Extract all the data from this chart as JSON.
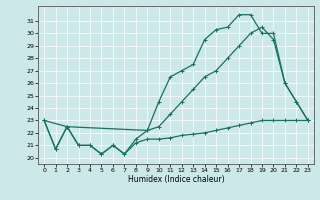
{
  "xlabel": "Humidex (Indice chaleur)",
  "bg_color": "#cce8e8",
  "line_color": "#1a7060",
  "grid_color": "#ffffff",
  "xlim": [
    -0.5,
    23.5
  ],
  "ylim": [
    19.5,
    32.2
  ],
  "xticks": [
    0,
    1,
    2,
    3,
    4,
    5,
    6,
    7,
    8,
    9,
    10,
    11,
    12,
    13,
    14,
    15,
    16,
    17,
    18,
    19,
    20,
    21,
    22,
    23
  ],
  "yticks": [
    20,
    21,
    22,
    23,
    24,
    25,
    26,
    27,
    28,
    29,
    30,
    31
  ],
  "series_top": {
    "x": [
      0,
      1,
      2,
      3,
      4,
      5,
      6,
      7,
      8,
      9,
      10,
      11,
      12,
      13,
      14,
      15,
      16,
      17,
      18,
      19,
      20,
      21,
      22,
      23
    ],
    "y": [
      23,
      20.7,
      22.5,
      21.0,
      21.0,
      20.3,
      21.0,
      20.3,
      21.5,
      22.2,
      24.5,
      26.5,
      27.0,
      27.5,
      29.5,
      30.3,
      30.5,
      31.5,
      31.5,
      30.0,
      30.0,
      26.0,
      24.5,
      23.0
    ]
  },
  "series_mid": {
    "x": [
      0,
      2,
      9,
      10,
      11,
      12,
      13,
      14,
      15,
      16,
      17,
      18,
      19,
      20,
      21,
      22,
      23
    ],
    "y": [
      23,
      22.5,
      22.2,
      22.5,
      23.5,
      24.5,
      25.5,
      26.5,
      27.0,
      28.0,
      29.0,
      30.0,
      30.5,
      29.5,
      26.0,
      24.5,
      23.0
    ]
  },
  "series_bottom": {
    "x": [
      0,
      1,
      2,
      3,
      4,
      5,
      6,
      7,
      8,
      9,
      10,
      11,
      12,
      13,
      14,
      15,
      16,
      17,
      18,
      19,
      20,
      21,
      22,
      23
    ],
    "y": [
      23,
      20.7,
      22.5,
      21.0,
      21.0,
      20.3,
      21.0,
      20.3,
      21.2,
      21.5,
      21.5,
      21.6,
      21.8,
      21.9,
      22.0,
      22.2,
      22.4,
      22.6,
      22.8,
      23.0,
      23.0,
      23.0,
      23.0,
      23.0
    ]
  }
}
